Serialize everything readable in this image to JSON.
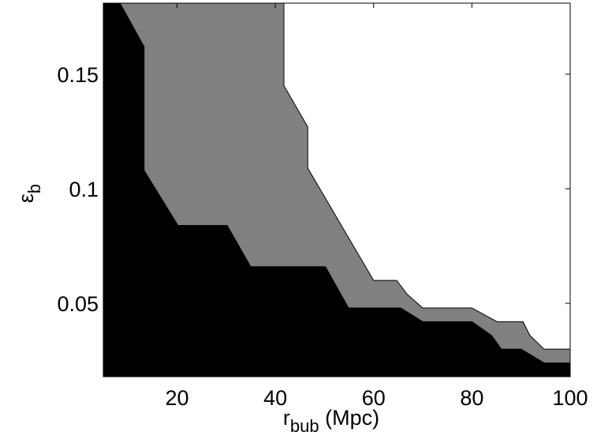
{
  "chart_data": {
    "type": "region",
    "xlabel": {
      "main": "r",
      "sub": "bub",
      "rest": " (Mpc)"
    },
    "ylabel": {
      "main": "ε",
      "sub": "b"
    },
    "xlim": [
      5,
      100
    ],
    "ylim": [
      0.018,
      0.181
    ],
    "xticks": [
      20,
      40,
      60,
      80,
      100
    ],
    "yticks": [
      0.05,
      0.1,
      0.15
    ],
    "series": [
      {
        "color": "#808080",
        "x": [
          5,
          41.75,
          41.75,
          46.6,
          46.6,
          60,
          64.7,
          66.8,
          70,
          80,
          85.1,
          90.4,
          91.8,
          94.7,
          100,
          100,
          5
        ],
        "y": [
          0.181,
          0.181,
          0.145,
          0.127,
          0.109,
          0.06,
          0.06,
          0.054,
          0.048,
          0.048,
          0.042,
          0.042,
          0.036,
          0.03,
          0.03,
          0.018,
          0.018
        ]
      },
      {
        "color": "#000000",
        "x": [
          5,
          8.4,
          13.3,
          13.3,
          20.2,
          30.2,
          35,
          50.2,
          54.9,
          65.5,
          70,
          80,
          84,
          86,
          90,
          94.7,
          100,
          100,
          5
        ],
        "y": [
          0.181,
          0.181,
          0.162,
          0.108,
          0.084,
          0.084,
          0.066,
          0.066,
          0.048,
          0.048,
          0.042,
          0.042,
          0.036,
          0.03,
          0.03,
          0.024,
          0.024,
          0.018,
          0.018
        ]
      }
    ]
  }
}
